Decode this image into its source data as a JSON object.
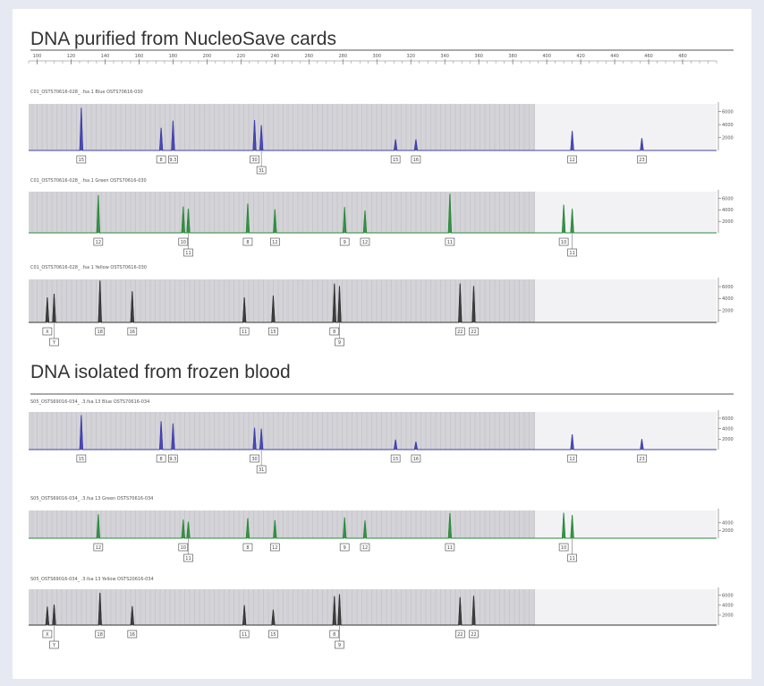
{
  "sections": [
    {
      "title": "DNA purified from NucleoSave cards"
    },
    {
      "title": "DNA isolated from frozen blood"
    }
  ],
  "colors": {
    "background": "#e6e9f2",
    "card": "#ffffff",
    "bin_fill": "#d4d4d8",
    "bin_line": "#b8b8bf",
    "blue": "#3f3fae",
    "green": "#2c8a3c",
    "yellow_black": "#333333"
  },
  "chart_data": [
    {
      "type": "line",
      "title": "",
      "x_axis": {
        "range": [
          95,
          500
        ],
        "ticks": [
          100,
          120,
          140,
          160,
          180,
          200,
          220,
          240,
          260,
          280,
          300,
          320,
          340,
          360,
          380,
          400,
          420,
          440,
          460,
          480
        ],
        "tick_labels": [
          "100",
          "120",
          "140",
          "160",
          "180",
          "200",
          "220",
          "240",
          "260",
          "280",
          "300",
          "320",
          "340",
          "360",
          "380",
          "400",
          "420",
          "440",
          "460",
          "480"
        ],
        "minor_step": 5
      },
      "panels": [
        {
          "title": "C01_OSTS70616-028_ .fsa 1 Blue OSTS70616-030",
          "color": "blue",
          "y_ticks": [
            2000,
            4000,
            6000
          ],
          "y_tick_labels": [
            "2000",
            "4000",
            "6000"
          ],
          "y_range": [
            0,
            7200
          ],
          "peaks": [
            {
              "x": 126,
              "h": 6600,
              "call": "15"
            },
            {
              "x": 173,
              "h": 3500,
              "call": "8"
            },
            {
              "x": 180,
              "h": 4600,
              "call": "9.3"
            },
            {
              "x": 228,
              "h": 4700,
              "call": "30"
            },
            {
              "x": 232,
              "h": 3900,
              "call": "31"
            },
            {
              "x": 311,
              "h": 1700,
              "call": "15"
            },
            {
              "x": 323,
              "h": 1700,
              "call": "16"
            },
            {
              "x": 415,
              "h": 3000,
              "call": "12"
            },
            {
              "x": 456,
              "h": 1900,
              "call": "23"
            }
          ]
        },
        {
          "title": "C01_OSTS70616-028_ .fsa 1 Green OSTS70616-030",
          "color": "green",
          "y_ticks": [
            2000,
            4000,
            6000
          ],
          "y_tick_labels": [
            "2000",
            "4000",
            "6000"
          ],
          "y_range": [
            0,
            7200
          ],
          "peaks": [
            {
              "x": 136,
              "h": 6600,
              "call": "12"
            },
            {
              "x": 186,
              "h": 4600,
              "call": "10"
            },
            {
              "x": 189,
              "h": 4200,
              "call": "11"
            },
            {
              "x": 224,
              "h": 5100,
              "call": "8"
            },
            {
              "x": 240,
              "h": 4100,
              "call": "12"
            },
            {
              "x": 281,
              "h": 4500,
              "call": "9"
            },
            {
              "x": 293,
              "h": 3900,
              "call": "12"
            },
            {
              "x": 343,
              "h": 6800,
              "call": "11"
            },
            {
              "x": 410,
              "h": 4900,
              "call": "10"
            },
            {
              "x": 415,
              "h": 4200,
              "call": "11"
            }
          ]
        },
        {
          "title": "C01_OSTS70616-028_ .fsa 1 Yellow OSTS70616-030",
          "color": "yellow_black",
          "y_ticks": [
            2000,
            4000,
            6000
          ],
          "y_tick_labels": [
            "2000",
            "4000",
            "6000"
          ],
          "y_range": [
            0,
            7200
          ],
          "peaks": [
            {
              "x": 106,
              "h": 4200,
              "call": "X"
            },
            {
              "x": 110,
              "h": 4800,
              "call": "Y"
            },
            {
              "x": 137,
              "h": 7000,
              "call": "18"
            },
            {
              "x": 156,
              "h": 5200,
              "call": "16"
            },
            {
              "x": 222,
              "h": 4200,
              "call": "11"
            },
            {
              "x": 239,
              "h": 4500,
              "call": "15"
            },
            {
              "x": 275,
              "h": 6500,
              "call": "8"
            },
            {
              "x": 278,
              "h": 6100,
              "call": "9"
            },
            {
              "x": 349,
              "h": 6500,
              "call": "22"
            },
            {
              "x": 357,
              "h": 6100,
              "call": "22"
            }
          ]
        }
      ]
    },
    {
      "type": "line",
      "title": "",
      "x_axis": {
        "range": [
          95,
          500
        ],
        "ticks": [],
        "tick_labels": [],
        "minor_step": 5
      },
      "panels": [
        {
          "title": "S05_OSTS69016-034_ .3.fsa 13 Blue OSTS70616-034",
          "color": "blue",
          "y_ticks": [
            2000,
            4000,
            6000
          ],
          "y_tick_labels": [
            "2000",
            "4000",
            "6000"
          ],
          "y_range": [
            0,
            7200
          ],
          "peaks": [
            {
              "x": 126,
              "h": 6600,
              "call": "15"
            },
            {
              "x": 173,
              "h": 5400,
              "call": "8"
            },
            {
              "x": 180,
              "h": 5000,
              "call": "9.3"
            },
            {
              "x": 228,
              "h": 4200,
              "call": "30"
            },
            {
              "x": 232,
              "h": 4000,
              "call": "31"
            },
            {
              "x": 311,
              "h": 1900,
              "call": "15"
            },
            {
              "x": 323,
              "h": 1500,
              "call": "16"
            },
            {
              "x": 415,
              "h": 2900,
              "call": "12"
            },
            {
              "x": 456,
              "h": 2000,
              "call": "23"
            }
          ]
        },
        {
          "title": "S05_OSTS69016-034_ .3.fsa 13 Green OSTS70616-034",
          "color": "green",
          "y_ticks": [
            2000,
            4000
          ],
          "y_tick_labels": [
            "2000",
            "4000"
          ],
          "y_range": [
            0,
            7200
          ],
          "peaks": [
            {
              "x": 136,
              "h": 6200,
              "call": "12"
            },
            {
              "x": 186,
              "h": 4800,
              "call": "10"
            },
            {
              "x": 189,
              "h": 4300,
              "call": "11"
            },
            {
              "x": 224,
              "h": 5200,
              "call": "8"
            },
            {
              "x": 240,
              "h": 4700,
              "call": "12"
            },
            {
              "x": 281,
              "h": 5400,
              "call": "9"
            },
            {
              "x": 293,
              "h": 4600,
              "call": "12"
            },
            {
              "x": 343,
              "h": 6500,
              "call": "11"
            },
            {
              "x": 410,
              "h": 6600,
              "call": "10"
            },
            {
              "x": 415,
              "h": 6000,
              "call": "11"
            }
          ]
        },
        {
          "title": "S05_OSTS69016-034_ .3.fsa 13 Yellow OSTS20616-034",
          "color": "yellow_black",
          "y_ticks": [
            2000,
            4000,
            6000
          ],
          "y_tick_labels": [
            "2000",
            "4000",
            "6000"
          ],
          "y_range": [
            0,
            7200
          ],
          "peaks": [
            {
              "x": 106,
              "h": 3700,
              "call": "X"
            },
            {
              "x": 110,
              "h": 4100,
              "call": "Y"
            },
            {
              "x": 137,
              "h": 6500,
              "call": "18"
            },
            {
              "x": 156,
              "h": 3800,
              "call": "16"
            },
            {
              "x": 222,
              "h": 4000,
              "call": "11"
            },
            {
              "x": 239,
              "h": 3100,
              "call": "15"
            },
            {
              "x": 275,
              "h": 5800,
              "call": "8"
            },
            {
              "x": 278,
              "h": 6200,
              "call": "9"
            },
            {
              "x": 349,
              "h": 5600,
              "call": "22"
            },
            {
              "x": 357,
              "h": 5900,
              "call": "22"
            }
          ]
        }
      ]
    }
  ]
}
